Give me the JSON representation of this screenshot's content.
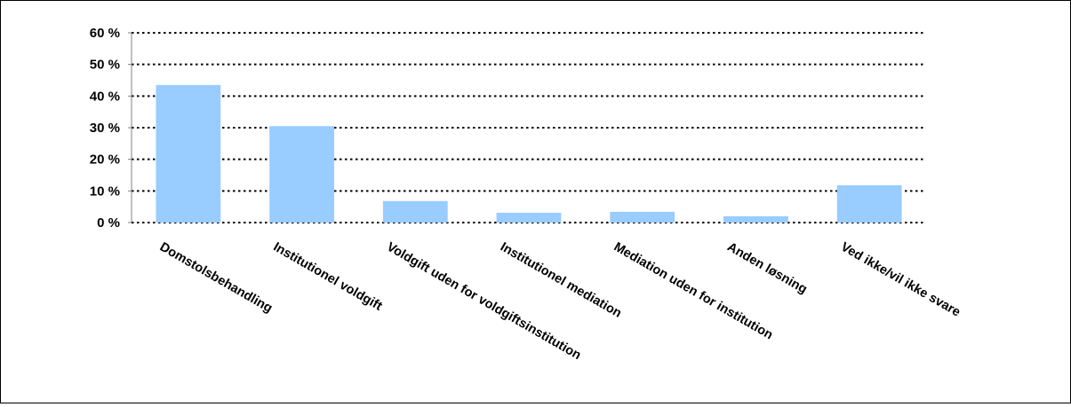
{
  "chart_data": {
    "type": "bar",
    "title": "",
    "xlabel": "",
    "ylabel": "",
    "categories": [
      "Domstolsbehandling",
      "Institutionel voldgift",
      "Voldgift uden for voldgiftsinstitution",
      "Institutionel mediation",
      "Mediation uden for institution",
      "Anden løsning",
      "Ved ikke/vil ikke svare"
    ],
    "values": [
      43.5,
      30.5,
      6.8,
      3.1,
      3.4,
      2.0,
      11.8
    ],
    "ylim": [
      0,
      60
    ],
    "yticks": [
      0,
      10,
      20,
      30,
      40,
      50,
      60
    ],
    "ytick_labels": [
      "0 %",
      "10 %",
      "20 %",
      "30 %",
      "40 %",
      "50 %",
      "60 %"
    ],
    "grid": "dotted horizontal",
    "legend": "none",
    "colors": {
      "bar": "#99ccff",
      "grid": "#000000",
      "axis": "#808080"
    }
  }
}
